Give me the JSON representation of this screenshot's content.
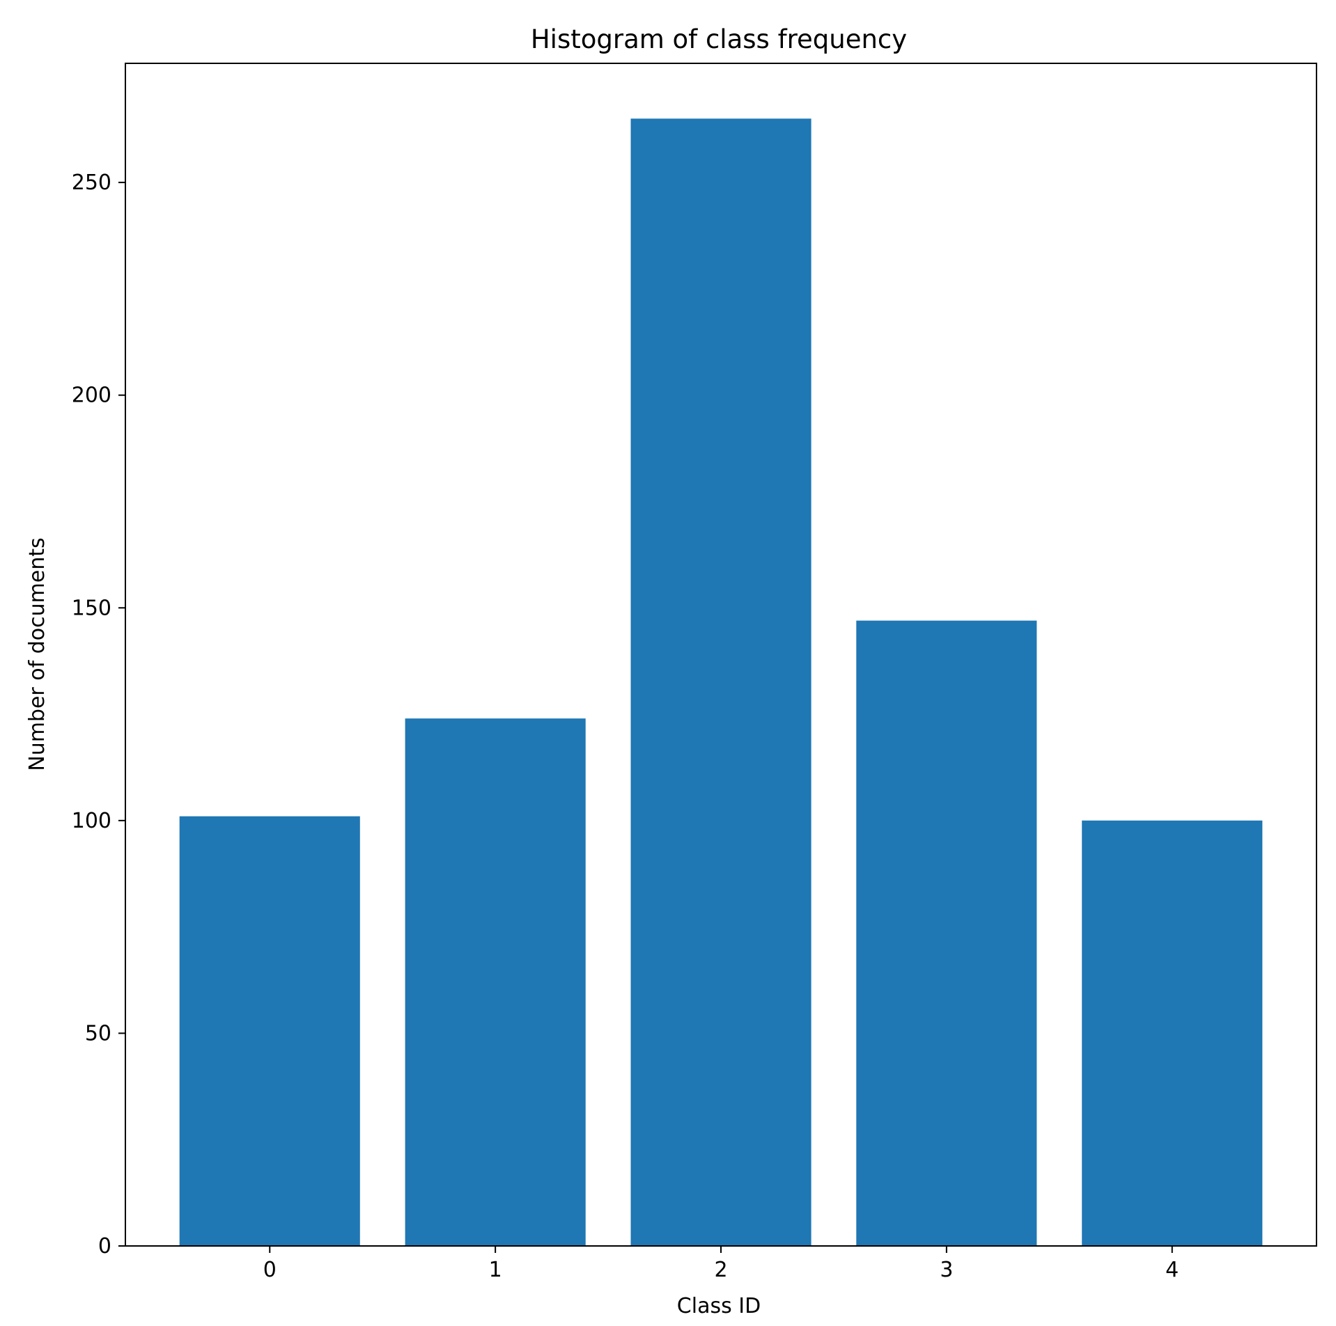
{
  "chart_data": {
    "type": "bar",
    "title": "Histogram of class frequency",
    "xlabel": "Class ID",
    "ylabel": "Number of documents",
    "categories": [
      "0",
      "1",
      "2",
      "3",
      "4"
    ],
    "values": [
      101,
      124,
      265,
      147,
      100
    ],
    "ylim": [
      0,
      278
    ],
    "yticks": [
      0,
      50,
      100,
      150,
      200,
      250
    ],
    "grid": false,
    "legend": "none",
    "bar_color": "#1f77b4"
  }
}
